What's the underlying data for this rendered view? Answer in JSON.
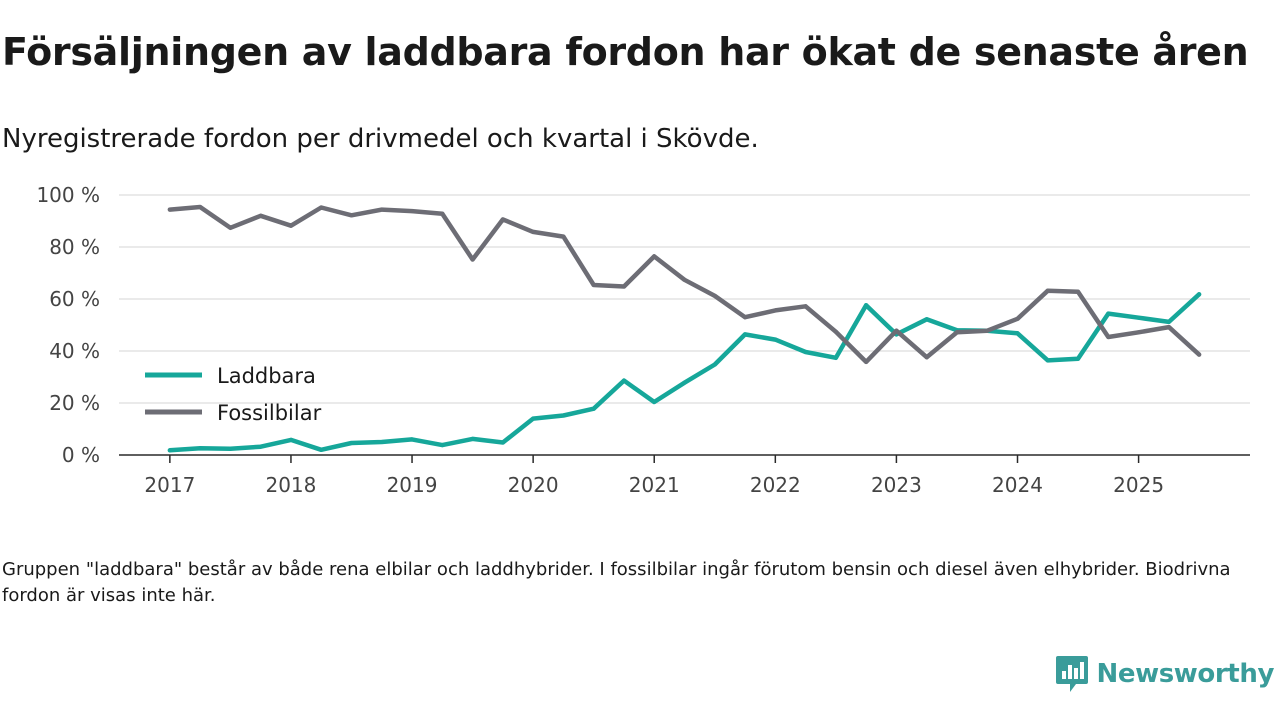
{
  "title": "Försäljningen av laddbara fordon har ökat de senaste åren",
  "subtitle": "Nyregistrerade fordon per drivmedel och kvartal i Skövde.",
  "footnote": "Gruppen \"laddbara\" består av både rena elbilar och laddhybrider. I fossilbilar ingår förutom bensin och diesel även elhybrider. Biodrivna fordon är visas inte här.",
  "brand": {
    "name": "Newsworthy",
    "icon": "newsworthy-logo-icon",
    "color": "#3a9c9a"
  },
  "chart_data": {
    "type": "line",
    "title": "Försäljningen av laddbara fordon har ökat de senaste åren",
    "subtitle": "Nyregistrerade fordon per drivmedel och kvartal i Skövde.",
    "xlabel": "",
    "ylabel": "",
    "x": [
      2017.0,
      2017.25,
      2017.5,
      2017.75,
      2018.0,
      2018.25,
      2018.5,
      2018.75,
      2019.0,
      2019.25,
      2019.5,
      2019.75,
      2020.0,
      2020.25,
      2020.5,
      2020.75,
      2021.0,
      2021.25,
      2021.5,
      2021.75,
      2022.0,
      2022.25,
      2022.5,
      2022.75,
      2023.0,
      2023.25,
      2023.5,
      2023.75,
      2024.0,
      2024.25,
      2024.5,
      2024.75,
      2025.0,
      2025.25,
      2025.5
    ],
    "xlim": [
      2016.58,
      2025.92
    ],
    "ylim": [
      0,
      100
    ],
    "x_ticks": [
      2017,
      2018,
      2019,
      2020,
      2021,
      2022,
      2023,
      2024,
      2025
    ],
    "x_tick_labels": [
      "2017",
      "2018",
      "2019",
      "2020",
      "2021",
      "2022",
      "2023",
      "2024",
      "2025"
    ],
    "y_ticks": [
      0,
      20,
      40,
      60,
      80,
      100
    ],
    "y_tick_labels": [
      "0 %",
      "20 %",
      "40 %",
      "60 %",
      "80 %",
      "100 %"
    ],
    "grid": true,
    "legend_position": "left-middle",
    "series": [
      {
        "name": "Laddbara",
        "color": "#16a79a",
        "values": [
          1.8,
          2.6,
          2.4,
          3.2,
          5.8,
          2.0,
          4.6,
          5.0,
          6.0,
          3.8,
          6.2,
          4.8,
          14.0,
          15.2,
          17.8,
          28.6,
          20.4,
          27.8,
          34.8,
          46.4,
          44.4,
          39.6,
          37.4,
          57.6,
          46.4,
          52.2,
          48.0,
          47.8,
          46.8,
          36.4,
          37.0,
          54.4,
          52.8,
          51.2,
          61.8
        ]
      },
      {
        "name": "Fossilbilar",
        "color": "#6d6d75",
        "values": [
          94.4,
          95.4,
          87.4,
          92.0,
          88.2,
          95.2,
          92.2,
          94.4,
          93.8,
          92.8,
          75.2,
          90.6,
          85.8,
          84.0,
          65.4,
          64.8,
          76.4,
          67.4,
          61.2,
          53.0,
          55.6,
          57.2,
          47.4,
          35.8,
          47.8,
          37.6,
          47.2,
          47.8,
          52.4,
          63.2,
          62.8,
          45.4,
          47.2,
          49.2,
          38.6
        ]
      }
    ]
  }
}
